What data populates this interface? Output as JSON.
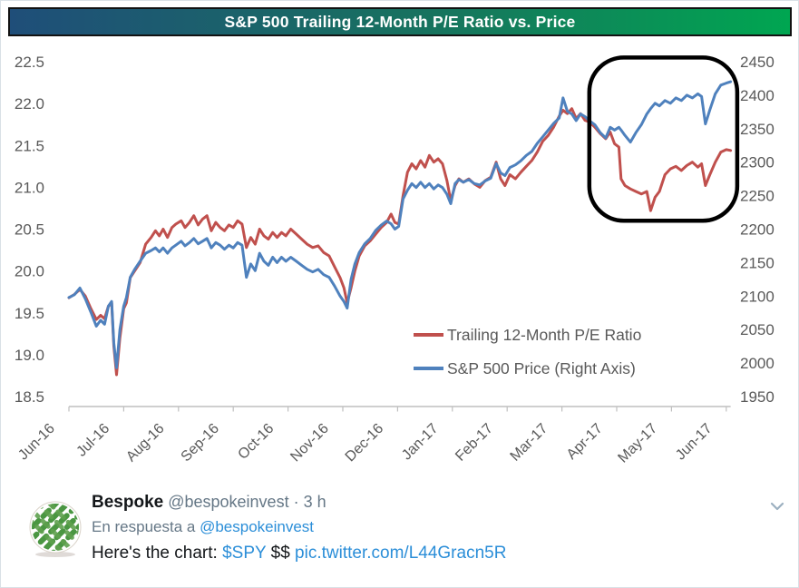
{
  "chart_data": {
    "type": "line",
    "title": "S&P 500 Trailing 12-Month P/E Ratio vs. Price",
    "grid": "off",
    "legend_position": "inside lower-right",
    "x_axis": {
      "labels": [
        "Jun-16",
        "Jul-16",
        "Aug-16",
        "Sep-16",
        "Oct-16",
        "Nov-16",
        "Dec-16",
        "Jan-17",
        "Feb-17",
        "Mar-17",
        "Apr-17",
        "May-17",
        "Jun-17"
      ],
      "unit": "month",
      "range_months": [
        0,
        12.2
      ]
    },
    "y_left": {
      "range": [
        18.5,
        22.5
      ],
      "ticks": [
        "22.5",
        "22.0",
        "21.5",
        "21.0",
        "20.5",
        "20.0",
        "19.5",
        "19.0",
        "18.5"
      ]
    },
    "y_right": {
      "range": [
        1950,
        2450
      ],
      "ticks": [
        "2450",
        "2400",
        "2350",
        "2300",
        "2250",
        "2200",
        "2150",
        "2100",
        "2050",
        "2000",
        "1950"
      ]
    },
    "annotation_box": {
      "x_months": [
        9.5,
        12.2
      ],
      "y_left_range": [
        20.6,
        22.55
      ]
    },
    "series": [
      {
        "name": "Trailing 12-Month P/E Ratio",
        "color": "#c0504d",
        "axis": "left",
        "points": [
          [
            0.0,
            19.68
          ],
          [
            0.1,
            19.72
          ],
          [
            0.2,
            19.78
          ],
          [
            0.3,
            19.7
          ],
          [
            0.4,
            19.55
          ],
          [
            0.5,
            19.42
          ],
          [
            0.58,
            19.47
          ],
          [
            0.65,
            19.43
          ],
          [
            0.72,
            19.58
          ],
          [
            0.78,
            19.62
          ],
          [
            0.82,
            19.1
          ],
          [
            0.87,
            18.76
          ],
          [
            0.93,
            19.2
          ],
          [
            1.0,
            19.55
          ],
          [
            1.05,
            19.62
          ],
          [
            1.12,
            19.92
          ],
          [
            1.2,
            20.0
          ],
          [
            1.3,
            20.1
          ],
          [
            1.4,
            20.32
          ],
          [
            1.5,
            20.4
          ],
          [
            1.58,
            20.48
          ],
          [
            1.65,
            20.42
          ],
          [
            1.72,
            20.5
          ],
          [
            1.8,
            20.4
          ],
          [
            1.88,
            20.52
          ],
          [
            1.95,
            20.56
          ],
          [
            2.05,
            20.6
          ],
          [
            2.12,
            20.52
          ],
          [
            2.2,
            20.58
          ],
          [
            2.28,
            20.66
          ],
          [
            2.36,
            20.55
          ],
          [
            2.44,
            20.62
          ],
          [
            2.52,
            20.66
          ],
          [
            2.6,
            20.48
          ],
          [
            2.68,
            20.58
          ],
          [
            2.76,
            20.52
          ],
          [
            2.84,
            20.48
          ],
          [
            2.92,
            20.55
          ],
          [
            3.0,
            20.52
          ],
          [
            3.08,
            20.6
          ],
          [
            3.16,
            20.56
          ],
          [
            3.24,
            20.28
          ],
          [
            3.32,
            20.4
          ],
          [
            3.4,
            20.32
          ],
          [
            3.48,
            20.5
          ],
          [
            3.56,
            20.42
          ],
          [
            3.64,
            20.38
          ],
          [
            3.72,
            20.46
          ],
          [
            3.8,
            20.4
          ],
          [
            3.88,
            20.46
          ],
          [
            3.96,
            20.42
          ],
          [
            4.05,
            20.5
          ],
          [
            4.15,
            20.44
          ],
          [
            4.25,
            20.38
          ],
          [
            4.35,
            20.32
          ],
          [
            4.45,
            20.28
          ],
          [
            4.55,
            20.3
          ],
          [
            4.65,
            20.22
          ],
          [
            4.75,
            20.18
          ],
          [
            4.85,
            20.05
          ],
          [
            4.95,
            19.92
          ],
          [
            5.02,
            19.8
          ],
          [
            5.08,
            19.62
          ],
          [
            5.15,
            19.8
          ],
          [
            5.22,
            20.0
          ],
          [
            5.3,
            20.18
          ],
          [
            5.4,
            20.3
          ],
          [
            5.5,
            20.36
          ],
          [
            5.6,
            20.44
          ],
          [
            5.7,
            20.52
          ],
          [
            5.8,
            20.58
          ],
          [
            5.88,
            20.68
          ],
          [
            5.95,
            20.58
          ],
          [
            6.02,
            20.56
          ],
          [
            6.1,
            20.9
          ],
          [
            6.18,
            21.18
          ],
          [
            6.26,
            21.28
          ],
          [
            6.34,
            21.22
          ],
          [
            6.42,
            21.32
          ],
          [
            6.5,
            21.24
          ],
          [
            6.58,
            21.38
          ],
          [
            6.66,
            21.3
          ],
          [
            6.74,
            21.34
          ],
          [
            6.82,
            21.28
          ],
          [
            6.9,
            21.08
          ],
          [
            6.97,
            20.84
          ],
          [
            7.05,
            21.02
          ],
          [
            7.12,
            21.1
          ],
          [
            7.2,
            21.06
          ],
          [
            7.3,
            21.1
          ],
          [
            7.4,
            21.04
          ],
          [
            7.5,
            21.0
          ],
          [
            7.6,
            21.08
          ],
          [
            7.7,
            21.12
          ],
          [
            7.8,
            21.3
          ],
          [
            7.88,
            21.1
          ],
          [
            7.96,
            21.02
          ],
          [
            8.05,
            21.15
          ],
          [
            8.15,
            21.1
          ],
          [
            8.25,
            21.18
          ],
          [
            8.35,
            21.25
          ],
          [
            8.45,
            21.32
          ],
          [
            8.55,
            21.42
          ],
          [
            8.65,
            21.55
          ],
          [
            8.75,
            21.62
          ],
          [
            8.85,
            21.72
          ],
          [
            8.95,
            21.85
          ],
          [
            9.02,
            21.92
          ],
          [
            9.1,
            21.88
          ],
          [
            9.18,
            21.94
          ],
          [
            9.26,
            21.82
          ],
          [
            9.34,
            21.88
          ],
          [
            9.42,
            21.8
          ],
          [
            9.5,
            21.78
          ],
          [
            9.6,
            21.72
          ],
          [
            9.7,
            21.64
          ],
          [
            9.8,
            21.58
          ],
          [
            9.88,
            21.66
          ],
          [
            9.96,
            21.52
          ],
          [
            10.04,
            21.48
          ],
          [
            10.08,
            21.1
          ],
          [
            10.15,
            21.02
          ],
          [
            10.25,
            20.98
          ],
          [
            10.35,
            20.95
          ],
          [
            10.45,
            20.92
          ],
          [
            10.55,
            20.95
          ],
          [
            10.62,
            20.72
          ],
          [
            10.7,
            20.88
          ],
          [
            10.78,
            20.95
          ],
          [
            10.88,
            21.15
          ],
          [
            10.98,
            21.22
          ],
          [
            11.08,
            21.25
          ],
          [
            11.18,
            21.2
          ],
          [
            11.28,
            21.26
          ],
          [
            11.38,
            21.3
          ],
          [
            11.48,
            21.24
          ],
          [
            11.55,
            21.28
          ],
          [
            11.62,
            21.02
          ],
          [
            11.7,
            21.15
          ],
          [
            11.8,
            21.3
          ],
          [
            11.9,
            21.42
          ],
          [
            12.0,
            21.45
          ],
          [
            12.08,
            21.44
          ]
        ]
      },
      {
        "name": "S&P 500 Price (Right Axis)",
        "color": "#4f81bd",
        "axis": "right",
        "points": [
          [
            0.0,
            2098
          ],
          [
            0.1,
            2102
          ],
          [
            0.2,
            2112
          ],
          [
            0.3,
            2096
          ],
          [
            0.4,
            2076
          ],
          [
            0.5,
            2055
          ],
          [
            0.58,
            2064
          ],
          [
            0.65,
            2058
          ],
          [
            0.72,
            2085
          ],
          [
            0.78,
            2092
          ],
          [
            0.82,
            2030
          ],
          [
            0.87,
            1993
          ],
          [
            0.93,
            2050
          ],
          [
            1.0,
            2085
          ],
          [
            1.05,
            2098
          ],
          [
            1.12,
            2128
          ],
          [
            1.2,
            2140
          ],
          [
            1.3,
            2152
          ],
          [
            1.4,
            2164
          ],
          [
            1.5,
            2168
          ],
          [
            1.58,
            2172
          ],
          [
            1.65,
            2166
          ],
          [
            1.72,
            2172
          ],
          [
            1.8,
            2164
          ],
          [
            1.88,
            2172
          ],
          [
            1.95,
            2176
          ],
          [
            2.05,
            2182
          ],
          [
            2.12,
            2175
          ],
          [
            2.2,
            2180
          ],
          [
            2.28,
            2186
          ],
          [
            2.36,
            2178
          ],
          [
            2.44,
            2182
          ],
          [
            2.52,
            2186
          ],
          [
            2.6,
            2172
          ],
          [
            2.68,
            2180
          ],
          [
            2.76,
            2176
          ],
          [
            2.84,
            2170
          ],
          [
            2.92,
            2176
          ],
          [
            3.0,
            2172
          ],
          [
            3.08,
            2180
          ],
          [
            3.16,
            2176
          ],
          [
            3.24,
            2128
          ],
          [
            3.32,
            2148
          ],
          [
            3.4,
            2138
          ],
          [
            3.48,
            2164
          ],
          [
            3.56,
            2152
          ],
          [
            3.64,
            2146
          ],
          [
            3.72,
            2158
          ],
          [
            3.8,
            2150
          ],
          [
            3.88,
            2158
          ],
          [
            3.96,
            2152
          ],
          [
            4.05,
            2158
          ],
          [
            4.15,
            2152
          ],
          [
            4.25,
            2146
          ],
          [
            4.35,
            2140
          ],
          [
            4.45,
            2136
          ],
          [
            4.55,
            2140
          ],
          [
            4.65,
            2132
          ],
          [
            4.75,
            2128
          ],
          [
            4.85,
            2115
          ],
          [
            4.95,
            2100
          ],
          [
            5.02,
            2092
          ],
          [
            5.08,
            2082
          ],
          [
            5.15,
            2125
          ],
          [
            5.22,
            2148
          ],
          [
            5.3,
            2165
          ],
          [
            5.4,
            2178
          ],
          [
            5.5,
            2186
          ],
          [
            5.6,
            2198
          ],
          [
            5.7,
            2206
          ],
          [
            5.8,
            2212
          ],
          [
            5.88,
            2208
          ],
          [
            5.95,
            2200
          ],
          [
            6.02,
            2204
          ],
          [
            6.1,
            2245
          ],
          [
            6.18,
            2258
          ],
          [
            6.26,
            2268
          ],
          [
            6.34,
            2262
          ],
          [
            6.42,
            2270
          ],
          [
            6.5,
            2262
          ],
          [
            6.58,
            2268
          ],
          [
            6.66,
            2260
          ],
          [
            6.74,
            2266
          ],
          [
            6.82,
            2262
          ],
          [
            6.9,
            2252
          ],
          [
            6.97,
            2238
          ],
          [
            7.05,
            2268
          ],
          [
            7.12,
            2274
          ],
          [
            7.2,
            2270
          ],
          [
            7.3,
            2274
          ],
          [
            7.4,
            2268
          ],
          [
            7.5,
            2266
          ],
          [
            7.6,
            2272
          ],
          [
            7.7,
            2276
          ],
          [
            7.8,
            2298
          ],
          [
            7.88,
            2284
          ],
          [
            7.96,
            2280
          ],
          [
            8.05,
            2292
          ],
          [
            8.15,
            2296
          ],
          [
            8.25,
            2302
          ],
          [
            8.35,
            2310
          ],
          [
            8.45,
            2316
          ],
          [
            8.55,
            2328
          ],
          [
            8.65,
            2338
          ],
          [
            8.75,
            2348
          ],
          [
            8.85,
            2358
          ],
          [
            8.95,
            2366
          ],
          [
            9.02,
            2396
          ],
          [
            9.1,
            2376
          ],
          [
            9.18,
            2372
          ],
          [
            9.26,
            2362
          ],
          [
            9.34,
            2372
          ],
          [
            9.42,
            2368
          ],
          [
            9.5,
            2362
          ],
          [
            9.6,
            2356
          ],
          [
            9.7,
            2344
          ],
          [
            9.8,
            2336
          ],
          [
            9.88,
            2352
          ],
          [
            9.96,
            2348
          ],
          [
            10.04,
            2352
          ],
          [
            10.08,
            2348
          ],
          [
            10.15,
            2340
          ],
          [
            10.25,
            2330
          ],
          [
            10.35,
            2344
          ],
          [
            10.45,
            2356
          ],
          [
            10.55,
            2372
          ],
          [
            10.62,
            2380
          ],
          [
            10.7,
            2388
          ],
          [
            10.78,
            2384
          ],
          [
            10.88,
            2392
          ],
          [
            10.98,
            2388
          ],
          [
            11.08,
            2396
          ],
          [
            11.18,
            2392
          ],
          [
            11.28,
            2400
          ],
          [
            11.38,
            2396
          ],
          [
            11.48,
            2402
          ],
          [
            11.55,
            2398
          ],
          [
            11.62,
            2357
          ],
          [
            11.7,
            2378
          ],
          [
            11.8,
            2402
          ],
          [
            11.9,
            2415
          ],
          [
            12.0,
            2418
          ],
          [
            12.08,
            2420
          ]
        ]
      }
    ]
  },
  "colors": {
    "title_gradient_left": "#1f4e79",
    "title_gradient_right": "#00a651",
    "axis_text": "#595959",
    "axis_line": "#bfbfbf",
    "annotation": "#000000",
    "link": "#2b8ed8"
  },
  "tweet": {
    "author": "Bespoke",
    "handle": "@bespokeinvest",
    "separator": "·",
    "time": "3 h",
    "reply_prefix": "En respuesta a",
    "reply_to": "@bespokeinvest",
    "body_prefix": "Here's the chart:",
    "cashtag": "$SPY",
    "body_mid": "$$",
    "link": "pic.twitter.com/L44Gracn5R"
  }
}
